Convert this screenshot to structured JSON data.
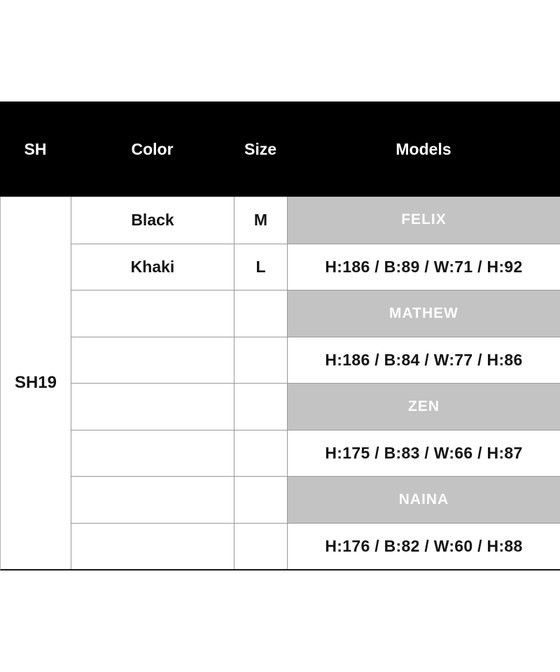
{
  "header": {
    "sh": "SH",
    "color": "Color",
    "size": "Size",
    "models": "Models"
  },
  "product_code": "SH19",
  "variants": [
    {
      "color": "Black",
      "size": "M"
    },
    {
      "color": "Khaki",
      "size": "L"
    }
  ],
  "models": [
    {
      "name": "FELIX",
      "measurements": "H:186 / B:89 / W:71 / H:92"
    },
    {
      "name": "MATHEW",
      "measurements": "H:186 / B:84 / W:77 / H:86"
    },
    {
      "name": "ZEN",
      "measurements": "H:175 / B:83 / W:66 / H:87"
    },
    {
      "name": "NAINA",
      "measurements": "H:176 / B:82 / W:60 / H:88"
    }
  ],
  "colors": {
    "header_bg": "#000000",
    "header_text": "#ffffff",
    "model_bar_bg": "#c3c3c3",
    "model_bar_text": "#fdfdfd",
    "grid_line": "#999999",
    "bottom_border": "#151515",
    "body_text": "#141414",
    "page_bg": "#ffffff"
  },
  "chart_data": {
    "type": "table",
    "title": "Product size chart SH19",
    "columns": [
      "SH",
      "Color",
      "Size",
      "Models"
    ],
    "rows": [
      [
        "SH19",
        "Black",
        "M",
        "FELIX"
      ],
      [
        "",
        "Khaki",
        "L",
        "H:186 / B:89 / W:71 / H:92"
      ],
      [
        "",
        "",
        "",
        "MATHEW"
      ],
      [
        "",
        "",
        "",
        "H:186 / B:84 / W:77 / H:86"
      ],
      [
        "",
        "",
        "",
        "ZEN"
      ],
      [
        "",
        "",
        "",
        "H:175 / B:83 / W:66 / H:87"
      ],
      [
        "",
        "",
        "",
        "NAINA"
      ],
      [
        "",
        "",
        "",
        "H:176 / B:82 / W:60 / H:88"
      ]
    ]
  }
}
